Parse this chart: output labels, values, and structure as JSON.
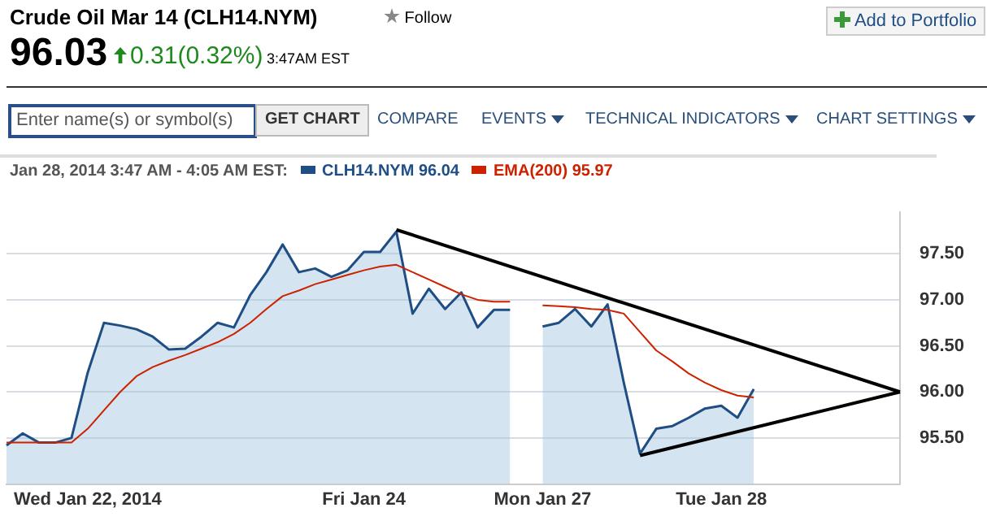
{
  "chart_data": {
    "type": "area",
    "title": "Crude Oil Mar 14 (CLH14.NYM)",
    "subtitle": "96.03",
    "legend_title": "Jan 28, 2014 3:47 AM - 4:05 AM EST:",
    "legend": "top left",
    "grid": "y",
    "marker": "none",
    "annotations": [
      "Follow",
      "0.31(0.32%)",
      "3:47AM EST",
      "Add to Portfolio",
      "Enter name(s) or symbol(s)",
      "GET CHART",
      "COMPARE",
      "EVENTS",
      "TECHNICAL INDICATORS",
      "CHART SETTINGS"
    ],
    "categories": [
      null,
      null,
      null,
      null,
      null,
      "Wed Jan 22, 2014",
      null,
      null,
      null,
      null,
      null,
      null,
      null,
      null,
      null,
      null,
      null,
      null,
      null,
      null,
      null,
      null,
      "Fri Jan 24",
      null,
      null,
      null,
      null,
      null,
      null,
      null,
      null,
      null,
      null,
      "Mon Jan 27",
      null,
      null,
      null,
      null,
      null,
      null,
      null,
      null,
      null,
      null,
      "Tue Jan 28",
      null,
      null,
      null,
      null,
      null,
      null,
      null,
      null,
      null,
      null,
      null
    ],
    "ylim": [
      95.0,
      97.95
    ],
    "yticks": [
      {
        "value": 95.5,
        "label": "95.50"
      },
      {
        "value": 96,
        "label": "96.00"
      },
      {
        "value": 96.5,
        "label": "96.50"
      },
      {
        "value": 97,
        "label": "97.00"
      },
      {
        "value": 97.5,
        "label": "97.50"
      }
    ],
    "series": [
      {
        "name": "CLH14.NYM 96.04",
        "color": "#1f4e85",
        "values": [
          95.42,
          95.55,
          95.45,
          95.45,
          95.5,
          96.21,
          96.75,
          96.72,
          96.68,
          96.6,
          96.46,
          96.47,
          96.6,
          96.75,
          96.7,
          97.05,
          97.3,
          97.6,
          97.3,
          97.34,
          97.25,
          97.32,
          97.52,
          97.52,
          97.74,
          96.85,
          97.12,
          96.9,
          97.08,
          96.7,
          96.89,
          96.89,
          null,
          96.71,
          96.75,
          96.9,
          96.71,
          96.95,
          96.1,
          95.33,
          95.6,
          95.63,
          95.72,
          95.82,
          95.85,
          95.72,
          96.03,
          null,
          null,
          null,
          null,
          null,
          null,
          null,
          null,
          null
        ]
      },
      {
        "name": "EMA(200) 95.97",
        "type": "line",
        "color": "#cc2200",
        "values": [
          95.45,
          95.45,
          95.45,
          95.45,
          95.45,
          95.6,
          95.8,
          96.0,
          96.17,
          96.27,
          96.34,
          96.4,
          96.47,
          96.54,
          96.63,
          96.75,
          96.9,
          97.04,
          97.1,
          97.17,
          97.22,
          97.27,
          97.32,
          97.36,
          97.38,
          97.3,
          97.22,
          97.14,
          97.06,
          97.0,
          96.98,
          96.98,
          null,
          96.94,
          96.93,
          96.92,
          96.9,
          96.89,
          96.85,
          96.65,
          96.45,
          96.33,
          96.2,
          96.1,
          96.02,
          95.96,
          95.94,
          null,
          null,
          null,
          null,
          null,
          null,
          null,
          null,
          null
        ]
      },
      {
        "type": "line",
        "color": "#000000",
        "values": [
          null,
          null,
          null,
          null,
          null,
          null,
          null,
          null,
          null,
          null,
          null,
          null,
          null,
          null,
          null,
          null,
          null,
          null,
          null,
          null,
          null,
          null,
          null,
          null,
          97.76,
          null,
          null,
          null,
          null,
          null,
          null,
          null,
          null,
          null,
          null,
          null,
          null,
          null,
          null,
          null,
          null,
          null,
          null,
          null,
          null,
          null,
          null,
          null,
          null,
          null,
          null,
          null,
          null,
          null,
          null,
          96.0
        ]
      },
      {
        "type": "line",
        "color": "#000000",
        "values": [
          null,
          null,
          null,
          null,
          null,
          null,
          null,
          null,
          null,
          null,
          null,
          null,
          null,
          null,
          null,
          null,
          null,
          null,
          null,
          null,
          null,
          null,
          null,
          null,
          null,
          null,
          null,
          null,
          null,
          null,
          null,
          null,
          null,
          null,
          null,
          null,
          null,
          null,
          null,
          95.31,
          null,
          null,
          null,
          null,
          null,
          null,
          null,
          null,
          null,
          null,
          null,
          null,
          null,
          null,
          null,
          96.0
        ]
      }
    ]
  }
}
